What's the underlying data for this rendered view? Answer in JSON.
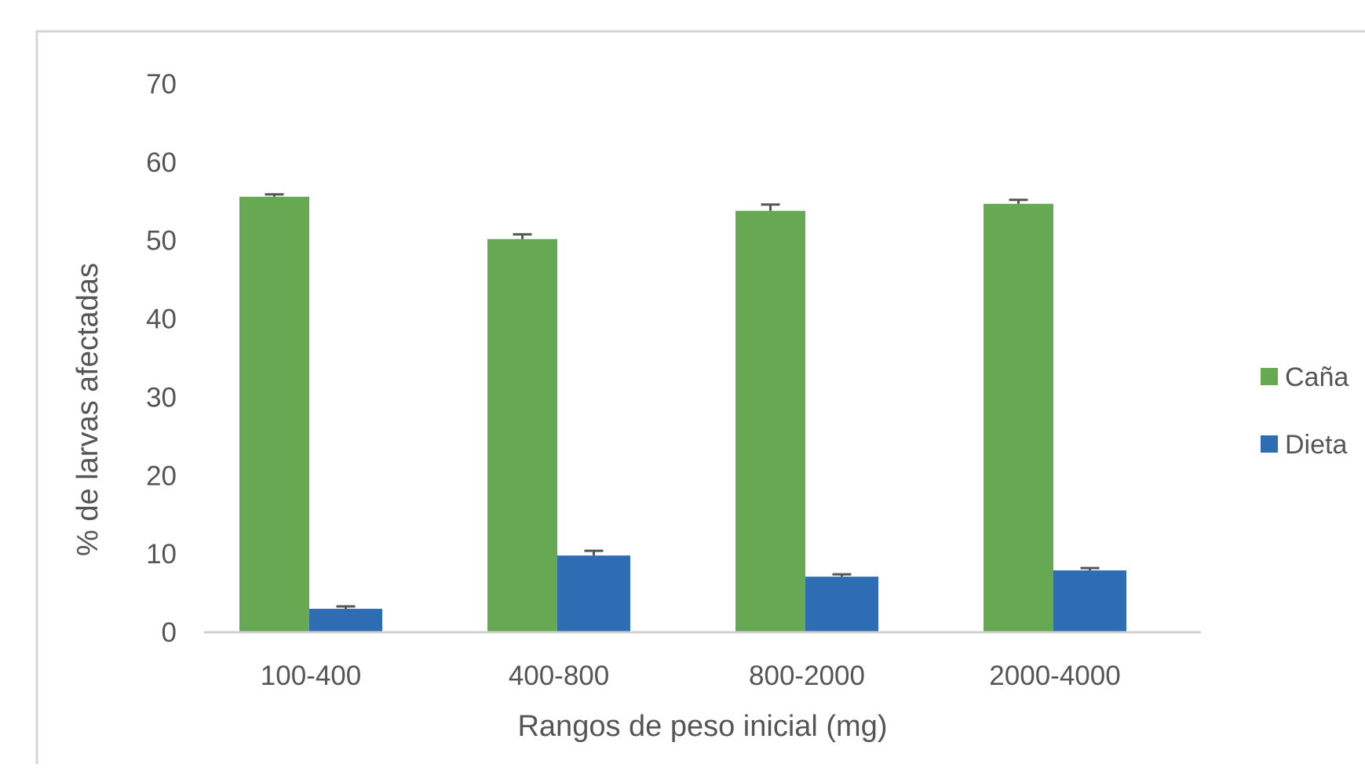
{
  "chart_data": {
    "type": "bar",
    "title": "",
    "xlabel": "Rangos de peso inicial  (mg)",
    "ylabel": "% de larvas afectadas",
    "categories": [
      "100-400",
      "400-800",
      "800-2000",
      "2000-4000"
    ],
    "series": [
      {
        "name": "Caña",
        "values": [
          55.6,
          50.2,
          53.8,
          54.7
        ],
        "errors": [
          0.3,
          0.6,
          0.8,
          0.5
        ],
        "color": "#67a853"
      },
      {
        "name": "Dieta",
        "values": [
          3.0,
          9.8,
          7.1,
          7.9
        ],
        "errors": [
          0.3,
          0.6,
          0.3,
          0.3
        ],
        "color": "#2e6db4"
      }
    ],
    "ylim": [
      0,
      70
    ],
    "yticks": [
      0,
      10,
      20,
      30,
      40,
      50,
      60,
      70
    ],
    "grid": false,
    "legend_position": "right"
  }
}
